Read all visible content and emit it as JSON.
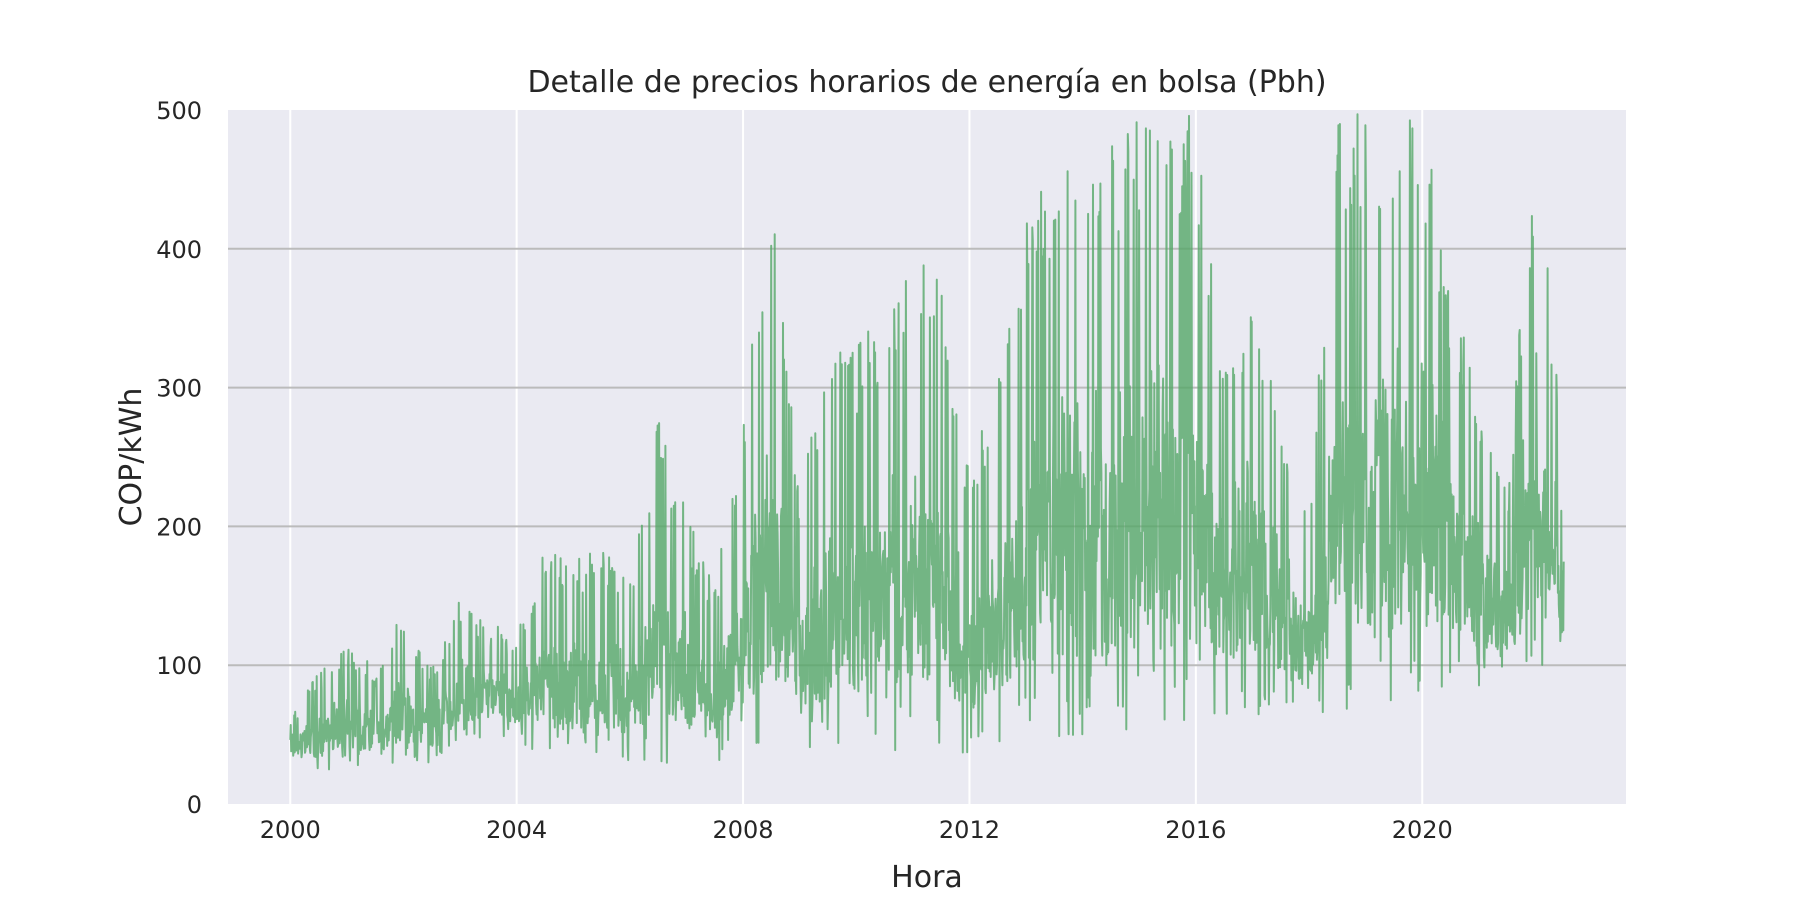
{
  "chart_data": {
    "type": "line",
    "title": "Detalle de precios horarios de energía en bolsa (Pbh)",
    "xlabel": "Hora",
    "ylabel": "COP/kWh",
    "xlim": [
      1998.9,
      2023.6
    ],
    "ylim": [
      0,
      500
    ],
    "x_ticks": [
      "2000",
      "2004",
      "2008",
      "2012",
      "2016",
      "2020"
    ],
    "y_ticks": [
      "0",
      "100",
      "200",
      "300",
      "400",
      "500"
    ],
    "grid": true,
    "legend": "none",
    "colors": {
      "series": "#55a868",
      "background": "#eaeaf2",
      "grid": "#ffffff",
      "hgrid": "#bbbbbb"
    },
    "series": [
      {
        "style": "min-max band per period (hourly prices)",
        "x": [
          2000.0,
          2000.5,
          2001.0,
          2001.5,
          2002.0,
          2002.5,
          2003.0,
          2003.5,
          2004.0,
          2004.5,
          2005.0,
          2005.5,
          2006.0,
          2006.5,
          2007.0,
          2007.5,
          2008.0,
          2008.5,
          2009.0,
          2009.5,
          2010.0,
          2010.5,
          2011.0,
          2011.5,
          2012.0,
          2012.5,
          2013.0,
          2013.5,
          2014.0,
          2014.5,
          2015.0,
          2015.5,
          2016.0,
          2016.5,
          2017.0,
          2017.5,
          2018.0,
          2018.5,
          2019.0,
          2019.5,
          2020.0,
          2020.5,
          2021.0,
          2021.5,
          2022.0,
          2022.5
        ],
        "min": [
          32,
          23,
          25,
          28,
          27,
          30,
          40,
          50,
          45,
          35,
          33,
          30,
          30,
          28,
          30,
          30,
          32,
          33,
          35,
          38,
          40,
          35,
          35,
          33,
          35,
          40,
          40,
          45,
          40,
          38,
          50,
          55,
          60,
          60,
          60,
          62,
          65,
          62,
          70,
          72,
          75,
          80,
          85,
          82,
          88,
          90
        ],
        "max": [
          62,
          95,
          118,
          98,
          140,
          100,
          148,
          130,
          125,
          190,
          175,
          187,
          165,
          282,
          210,
          155,
          282,
          440,
          230,
          322,
          330,
          360,
          404,
          385,
          240,
          308,
          430,
          452,
          482,
          475,
          500,
          500,
          500,
          325,
          384,
          275,
          212,
          500,
          500,
          500,
          500,
          380,
          295,
          225,
          500,
          275
        ]
      }
    ]
  }
}
